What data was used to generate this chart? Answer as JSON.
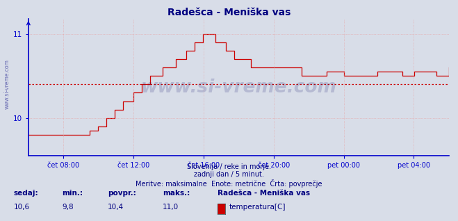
{
  "title": "Radešca - Meniška vas",
  "title_color": "#000080",
  "bg_color": "#d8dde8",
  "plot_bg_color": "#d8dde8",
  "line_color": "#cc0000",
  "avg_line_color": "#cc0000",
  "avg_value": 10.4,
  "ylim_min": 9.55,
  "ylim_max": 11.18,
  "yticks": [
    10,
    11
  ],
  "grid_color": "#e8b4b4",
  "axis_color": "#0000cc",
  "watermark": "www.si-vreme.com",
  "footer_line1": "Slovenija / reke in morje.",
  "footer_line2": "zadnji dan / 5 minut.",
  "footer_line3": "Meritve: maksimalne  Enote: metrične  Črta: povprečje",
  "footer_color": "#000080",
  "legend_title": "Radešca - Meniška vas",
  "legend_label": "temperatura[C]",
  "legend_color": "#cc0000",
  "stat_sedaj_label": "sedaj:",
  "stat_min_label": "min.:",
  "stat_povpr_label": "povpr.:",
  "stat_maks_label": "maks.:",
  "stat_sedaj": "10,6",
  "stat_min": "9,8",
  "stat_povpr": "10,4",
  "stat_maks": "11,0",
  "xtick_labels": [
    "čet 08:00",
    "čet 12:00",
    "čet 16:00",
    "čet 20:00",
    "pet 00:00",
    "pet 04:00"
  ],
  "xlim_min": 0.0,
  "xlim_max": 1.0,
  "xtick_positions": [
    0.0833,
    0.25,
    0.4167,
    0.5833,
    0.75,
    0.9167
  ]
}
